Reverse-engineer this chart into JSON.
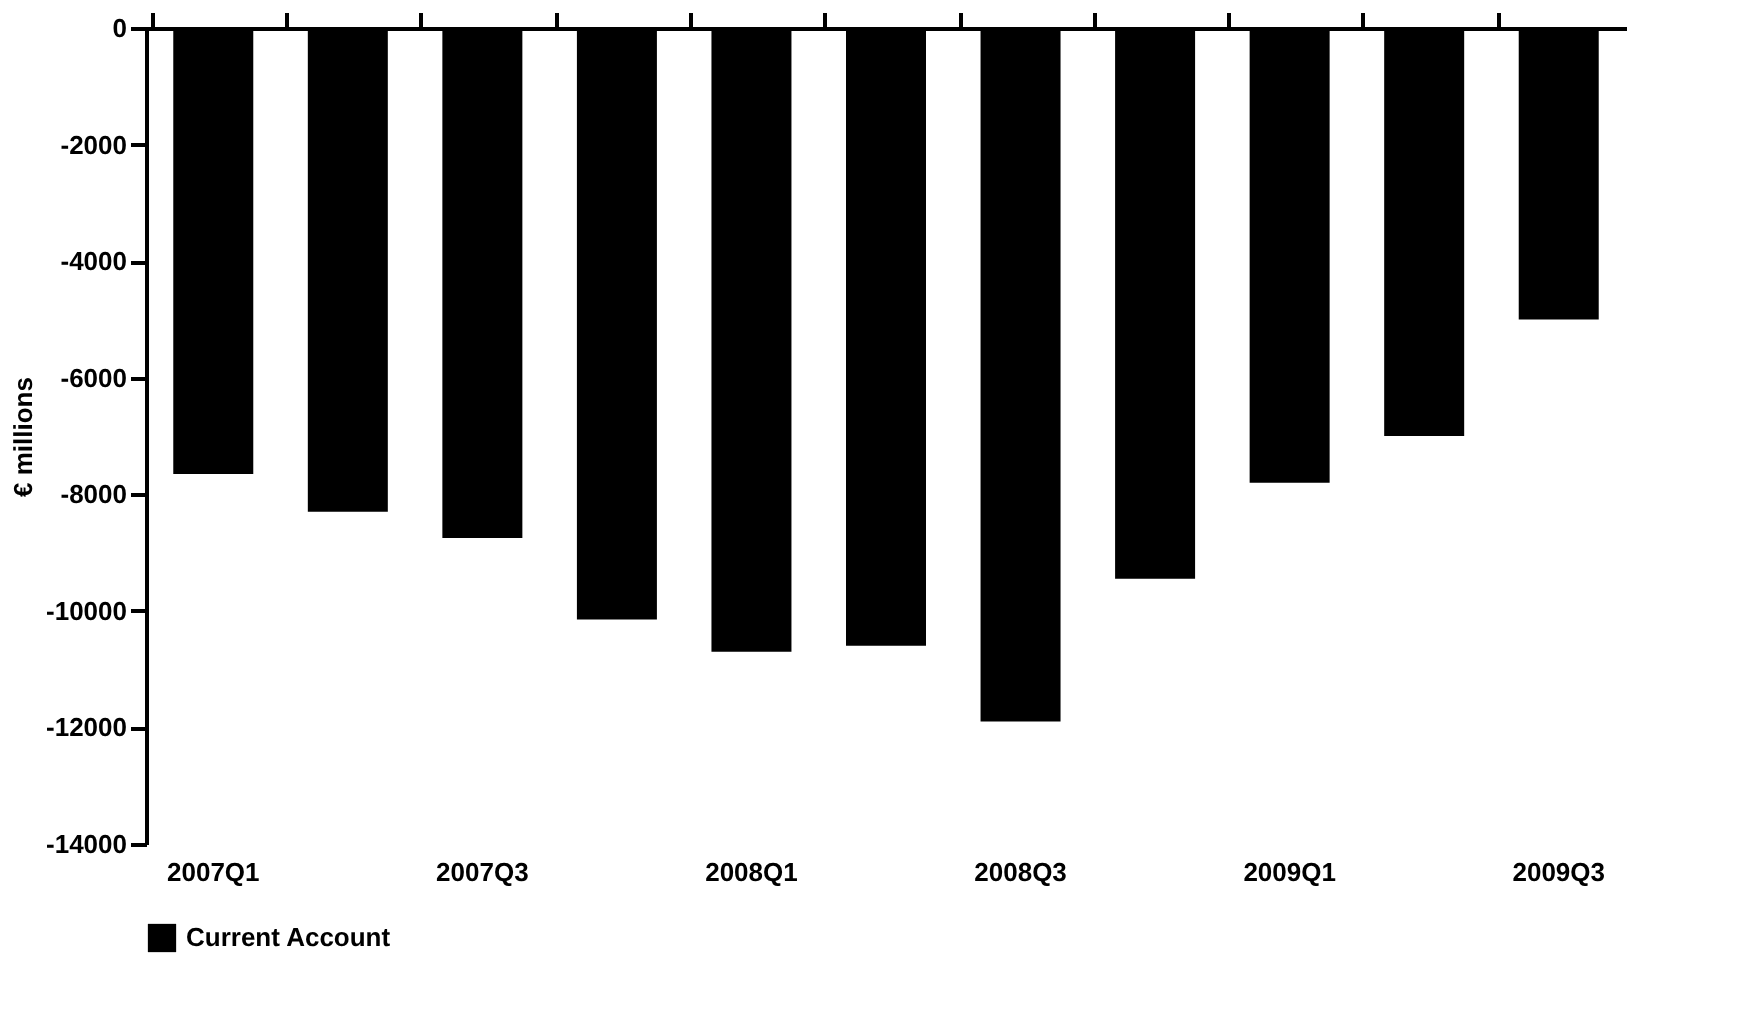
{
  "chart_data": {
    "type": "bar",
    "ylabel": "€ millions",
    "categories": [
      "2007Q1",
      null,
      "2007Q3",
      null,
      "2008Q1",
      null,
      "2008Q3",
      null,
      "2009Q1",
      null,
      "2009Q3"
    ],
    "series": [
      {
        "name": "Current Account",
        "color": "#000000",
        "values": [
          -7650,
          -8300,
          -8750,
          -10150,
          -10700,
          -10600,
          -11900,
          -9450,
          -7800,
          -7000,
          -5000
        ]
      }
    ],
    "ylim": [
      -14000,
      0
    ],
    "yticks": [
      -14000,
      -12000,
      -10000,
      -8000,
      -6000,
      -4000,
      -2000,
      0
    ],
    "grid": false,
    "legend": "bottom"
  }
}
